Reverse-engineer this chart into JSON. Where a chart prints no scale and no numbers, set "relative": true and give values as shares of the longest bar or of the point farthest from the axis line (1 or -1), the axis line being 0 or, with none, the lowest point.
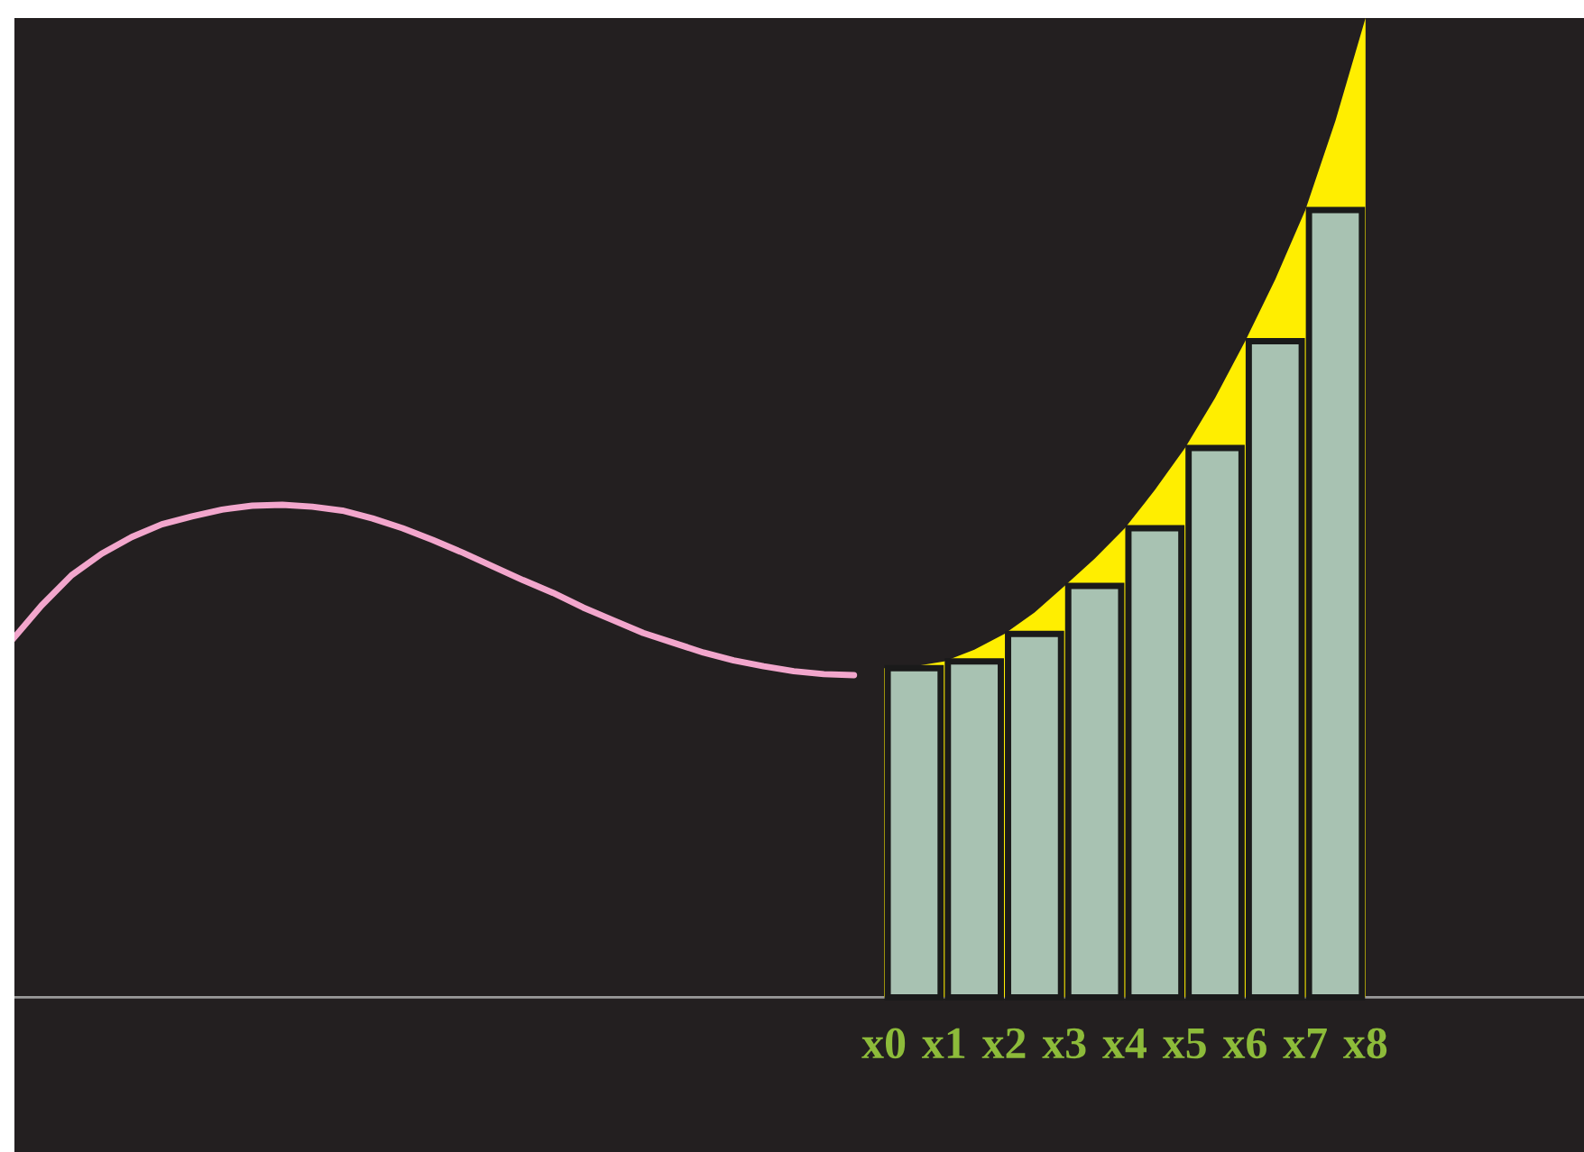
{
  "chart_data": {
    "type": "bar",
    "relative": true,
    "categories": [
      null,
      null,
      null,
      null,
      null,
      null,
      null,
      null,
      null,
      null,
      null,
      null,
      null,
      null,
      null,
      null,
      null,
      null,
      null,
      null,
      null,
      null,
      null,
      null,
      null,
      null,
      null,
      null,
      null,
      "x0",
      null,
      "x1",
      null,
      "x2",
      null,
      "x3",
      null,
      "x4",
      null,
      "x5",
      null,
      "x6",
      null,
      "x7",
      null,
      "x8",
      null,
      null,
      null,
      null,
      null,
      null,
      null
    ],
    "series": [
      {
        "type": "line",
        "color": "#f2a6cc",
        "values": [
          0.364,
          0.4,
          0.431,
          0.453,
          0.47,
          0.483,
          0.491,
          0.498,
          0.502,
          0.503,
          0.501,
          0.497,
          0.489,
          0.479,
          0.467,
          0.454,
          0.44,
          0.426,
          0.413,
          0.398,
          0.385,
          0.372,
          0.362,
          0.352,
          0.344,
          0.338,
          0.333,
          0.33,
          0.329,
          null,
          null,
          null,
          null,
          null,
          null,
          null,
          null,
          null,
          null,
          null,
          null,
          null,
          null,
          null,
          null,
          null,
          null,
          null,
          null,
          null,
          null,
          null,
          null
        ]
      },
      {
        "type": "area",
        "color": "#ffee00",
        "values": [
          null,
          null,
          null,
          null,
          null,
          null,
          null,
          null,
          null,
          null,
          null,
          null,
          null,
          null,
          null,
          null,
          null,
          null,
          null,
          null,
          null,
          null,
          null,
          null,
          null,
          null,
          null,
          null,
          null,
          0.336,
          0.338,
          0.343,
          0.355,
          0.371,
          0.393,
          0.42,
          0.448,
          0.479,
          0.518,
          0.561,
          0.612,
          0.67,
          0.733,
          0.804,
          0.895,
          1.0,
          null,
          null,
          null,
          null,
          null,
          null,
          null
        ]
      },
      {
        "color": "#a8c2b2",
        "values": [
          null,
          null,
          null,
          null,
          null,
          null,
          null,
          null,
          null,
          null,
          null,
          null,
          null,
          null,
          null,
          null,
          null,
          null,
          null,
          null,
          null,
          null,
          null,
          null,
          null,
          null,
          null,
          null,
          null,
          null,
          0.336,
          null,
          0.343,
          null,
          0.371,
          null,
          0.42,
          null,
          0.479,
          null,
          0.561,
          null,
          0.67,
          null,
          0.804,
          null,
          null,
          null,
          null,
          null,
          null,
          null,
          null
        ]
      }
    ]
  }
}
